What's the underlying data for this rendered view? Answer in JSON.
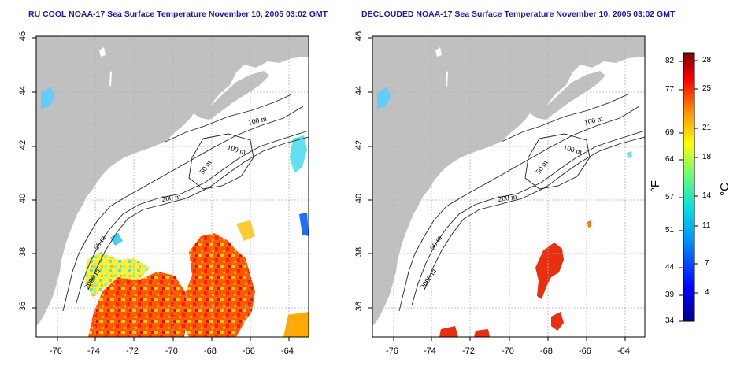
{
  "panels": [
    {
      "title": "RU COOL NOAA-17 Sea Surface Temperature November 10, 2005 03:02 GMT",
      "contours": [
        "100 m",
        "100 m",
        "50 m",
        "200 m",
        "50 m",
        "2000 m"
      ]
    },
    {
      "title": "DECLOUDED NOAA-17 Sea Surface Temperature November 10, 2005 03:02 GMT",
      "contours": [
        "100 m",
        "100 m",
        "50 m",
        "200 m",
        "50 m",
        "2000 m"
      ]
    }
  ],
  "axes": {
    "x_ticks": [
      "-76",
      "-74",
      "-72",
      "-70",
      "-68",
      "-66",
      "-64"
    ],
    "y_ticks": [
      "46",
      "44",
      "42",
      "40",
      "38",
      "36"
    ]
  },
  "colorbar": {
    "f_label": "°F",
    "c_label": "°C",
    "f_ticks": [
      "82",
      "77",
      "69",
      "64",
      "57",
      "51",
      "44",
      "39",
      "34"
    ],
    "c_ticks": [
      "28",
      "25",
      "21",
      "18",
      "14",
      "11",
      "7",
      "4"
    ]
  },
  "colors": {
    "land": "#c0c0c0",
    "title": "#1a1aa6",
    "grid": "#b0b0b0"
  }
}
